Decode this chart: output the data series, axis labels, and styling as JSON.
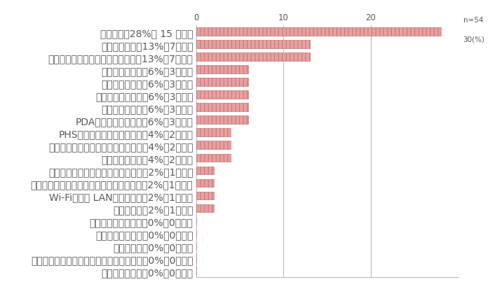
{
  "n_label": "n=54",
  "pct_label": "30(%)",
  "categories": [
    "携帯電話（28%、 15 回答）",
    "ポケットベル（13%、7回答）",
    "通信機能付きパソコン、ワープロ（13%、7回答）",
    "コードレス電話（6%、3回答）",
    "タブレット端末（6%、3回答）",
    "家庭用ファックス（6%、3回答）",
    "スマートフォン（6%、3回答）",
    "PDA（携帯情報端末）（6%、3回答）",
    "PHS（電話機、通信カード）（4%、2回答）",
    "キャプテン端末（ビデオテックス）（4%、2回答）",
    "ショルダーホン（4%、2回答）",
    "液晶テレビ（アナログ、デジタル）（2%、1回答）",
    "ハイビジョンテレビ（ブラウン管のもの）（2%、1回答）",
    "Wi-Fi（無線 LAN）ルーター（2%、1回答）",
    "自動車電話（2%、1回答）",
    "留守録機能付き電話（0%、0回答）",
    "衛星放送アンテナ（0%、0回答）",
    "テレビ電話（0%、0回答）",
    "ケーブルテレビ（セットトップボックス）（0%、0回答）",
    "その他通信機器（0%、0回答）"
  ],
  "values": [
    28,
    13,
    13,
    6,
    6,
    6,
    6,
    6,
    4,
    4,
    4,
    2,
    2,
    2,
    2,
    0,
    0,
    0,
    0,
    0
  ],
  "bar_color": "#e8a0a0",
  "bar_edge_color": "#b87070",
  "hatch_color": "#c07878",
  "xlim": [
    0,
    30
  ],
  "xticks": [
    0,
    10,
    20
  ],
  "bar_height": 0.65,
  "figsize": [
    6.99,
    4.14
  ],
  "dpi": 100,
  "background_color": "#ffffff",
  "grid_color": "#bbbbbb",
  "text_color": "#595959",
  "label_fontsize": 6.8,
  "tick_fontsize": 8.5
}
